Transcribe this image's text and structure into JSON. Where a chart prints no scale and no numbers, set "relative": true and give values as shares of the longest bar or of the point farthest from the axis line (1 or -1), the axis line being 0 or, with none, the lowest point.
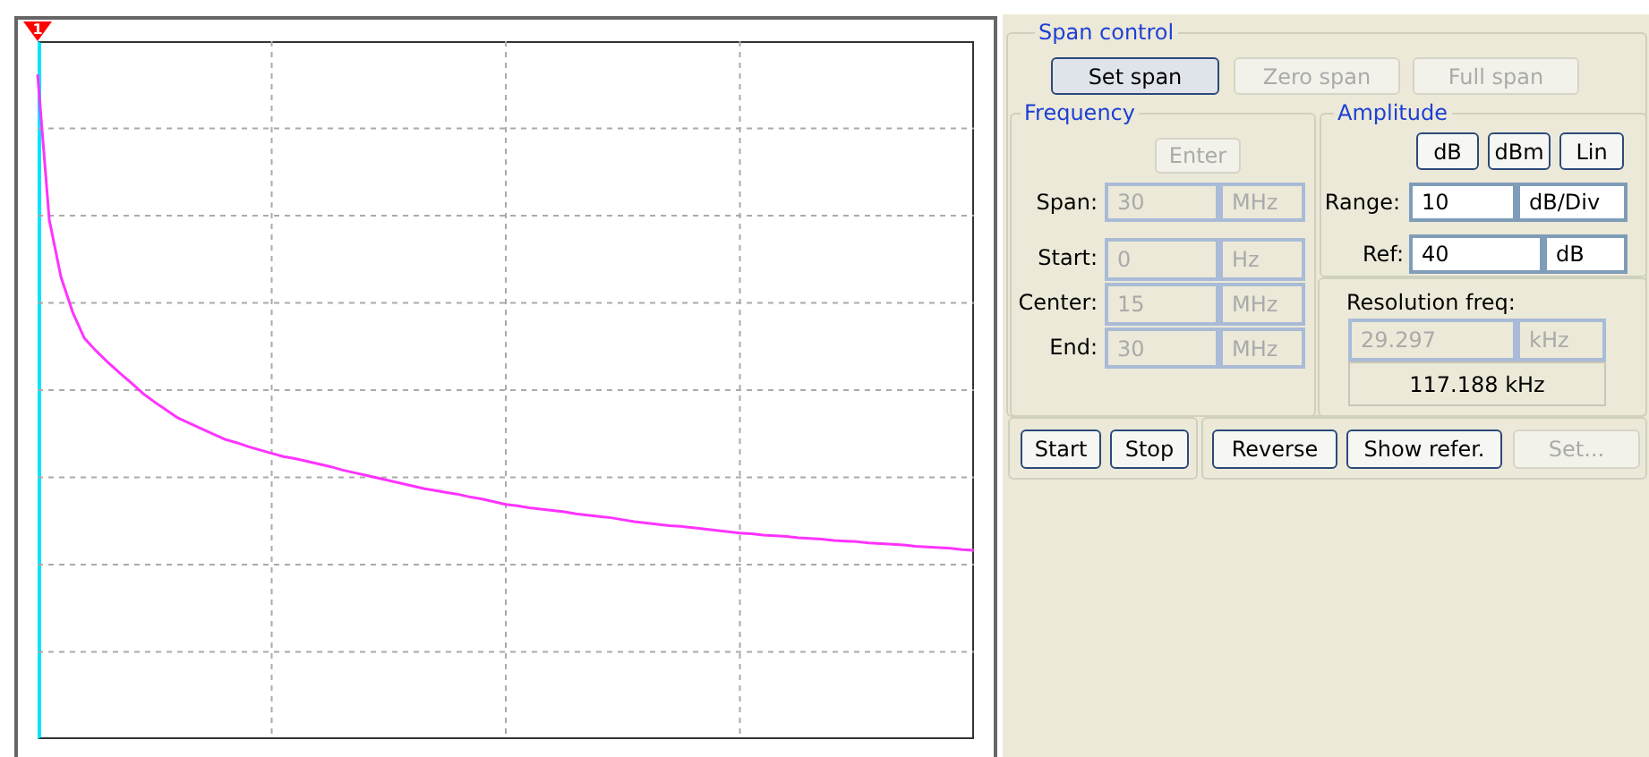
{
  "chart_data": [
    {
      "type": "line",
      "relative": true,
      "categories": [
        null,
        null,
        null,
        null,
        null,
        null,
        null,
        null,
        null,
        null,
        null,
        null,
        null,
        null,
        null,
        null,
        null,
        null,
        null,
        null,
        null,
        null,
        null,
        null,
        null,
        null,
        null,
        null,
        null,
        null,
        null,
        null,
        null,
        null,
        null,
        null,
        null,
        null,
        null,
        null,
        null,
        null,
        null,
        null,
        null,
        null,
        null,
        null,
        null,
        null,
        null,
        null,
        null,
        null,
        null,
        null,
        null,
        null,
        null,
        null,
        null,
        null,
        null,
        null,
        null,
        null,
        null,
        null,
        null,
        null,
        null,
        null,
        null,
        null,
        null,
        null,
        null,
        null,
        null,
        null,
        null
      ],
      "series": [
        {
          "color": "#ff33ff",
          "values": [
            1.0,
            0.781,
            0.695,
            0.642,
            0.603,
            0.584,
            0.567,
            0.551,
            0.536,
            0.52,
            0.507,
            0.495,
            0.483,
            0.475,
            0.467,
            0.459,
            0.451,
            0.446,
            0.44,
            0.435,
            0.43,
            0.425,
            0.422,
            0.418,
            0.414,
            0.41,
            0.405,
            0.401,
            0.397,
            0.393,
            0.389,
            0.385,
            0.381,
            0.377,
            0.374,
            0.371,
            0.368,
            0.364,
            0.361,
            0.357,
            0.353,
            0.351,
            0.348,
            0.346,
            0.344,
            0.342,
            0.339,
            0.337,
            0.335,
            0.333,
            0.33,
            0.327,
            0.325,
            0.323,
            0.321,
            0.32,
            0.318,
            0.316,
            0.314,
            0.312,
            0.31,
            0.309,
            0.307,
            0.306,
            0.305,
            0.303,
            0.302,
            0.301,
            0.299,
            0.298,
            0.297,
            0.295,
            0.294,
            0.293,
            0.292,
            0.29,
            0.289,
            0.288,
            0.287,
            0.285,
            0.284
          ]
        }
      ],
      "grid": true,
      "marker": "none",
      "line_style": "solid",
      "annotations": [
        "1"
      ]
    },
    {
      "type": "other",
      "annotations": [
        "Span control",
        "Set span",
        "Zero span",
        "Full span",
        "Frequency",
        "Enter",
        "Span:",
        "30",
        "MHz",
        "Start:",
        "0",
        "Hz",
        "Center:",
        "15",
        "MHz",
        "End:",
        "30",
        "MHz",
        "Amplitude",
        "dB",
        "dBm",
        "Lin",
        "Range:",
        "10",
        "dB/Div",
        "Ref:",
        "40",
        "dB",
        "Resolution freq:",
        "29.297",
        "kHz",
        "117.188 kHz",
        "Start",
        "Stop",
        "Reverse",
        "Show refer.",
        "Set..."
      ]
    }
  ]
}
